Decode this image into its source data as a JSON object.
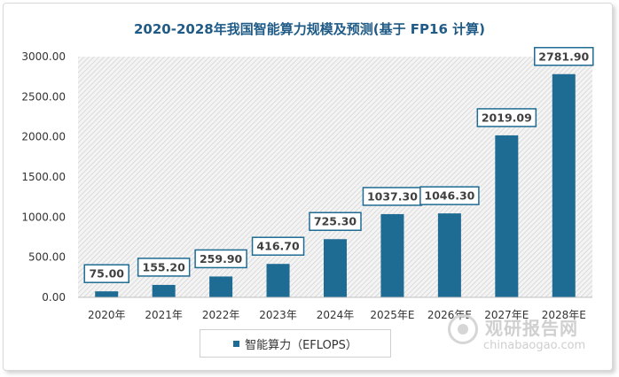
{
  "chart_data": {
    "type": "bar",
    "title": "2020-2028年我国智能算力规模及预测(基于 FP16 计算)",
    "categories": [
      "2020年",
      "2021年",
      "2022年",
      "2023年",
      "2024年",
      "2025年E",
      "2026年E",
      "2027年E",
      "2028年E"
    ],
    "series": [
      {
        "name": "智能算力（EFLOPS）",
        "values": [
          75.0,
          155.2,
          259.9,
          416.7,
          725.3,
          1037.3,
          1046.3,
          2019.09,
          2781.9
        ],
        "labels": [
          "75.00",
          "155.20",
          "259.90",
          "416.70",
          "725.30",
          "1037.30",
          "1046.30",
          "2019.09",
          "2781.90"
        ]
      }
    ],
    "ylim": [
      0,
      3000
    ],
    "yticks": [
      "0.00",
      "500.00",
      "1000.00",
      "1500.00",
      "2000.00",
      "2500.00",
      "3000.00"
    ],
    "xlabel": "",
    "ylabel": "",
    "grid": false,
    "plot_background": "hatched",
    "legend_position": "bottom",
    "colors": {
      "bar": "#1e6b93",
      "title": "#1f5b86",
      "label_border": "#1e6b93"
    }
  },
  "watermark": {
    "text_cn": "观研报告网",
    "text_en": "chinabaogao.com"
  }
}
